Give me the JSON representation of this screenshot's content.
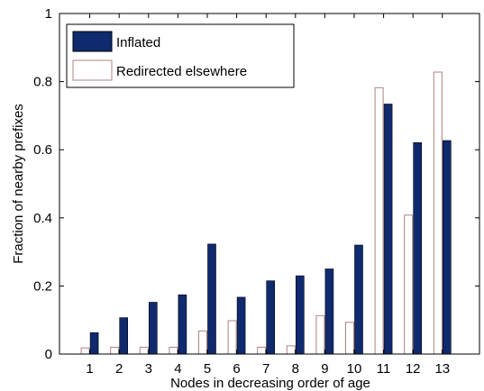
{
  "chart_data": {
    "type": "bar",
    "xlabel": "Nodes in decreasing order of age",
    "ylabel": "Fraction of nearby prefixes",
    "categories": [
      "1",
      "2",
      "3",
      "4",
      "5",
      "6",
      "7",
      "8",
      "9",
      "10",
      "11",
      "12",
      "13"
    ],
    "ylim": [
      0,
      1
    ],
    "yticks": [
      0,
      0.2,
      0.4,
      0.6,
      0.8,
      1
    ],
    "ytick_labels": [
      "0",
      "0.2",
      "0.4",
      "0.6",
      "0.8",
      "1"
    ],
    "grid": false,
    "legend_position": "top-left",
    "series": [
      {
        "name": "Inflated",
        "color": "#0f2a6e",
        "values": [
          0.063,
          0.107,
          0.152,
          0.174,
          0.323,
          0.167,
          0.215,
          0.23,
          0.25,
          0.32,
          0.734,
          0.621,
          0.627
        ]
      },
      {
        "name": "Redirected elsewhere",
        "color": "#ffffff",
        "edge_color": "#b08080",
        "values": [
          0.018,
          0.02,
          0.02,
          0.02,
          0.068,
          0.098,
          0.02,
          0.024,
          0.113,
          0.093,
          0.782,
          0.408,
          0.828
        ]
      }
    ]
  }
}
